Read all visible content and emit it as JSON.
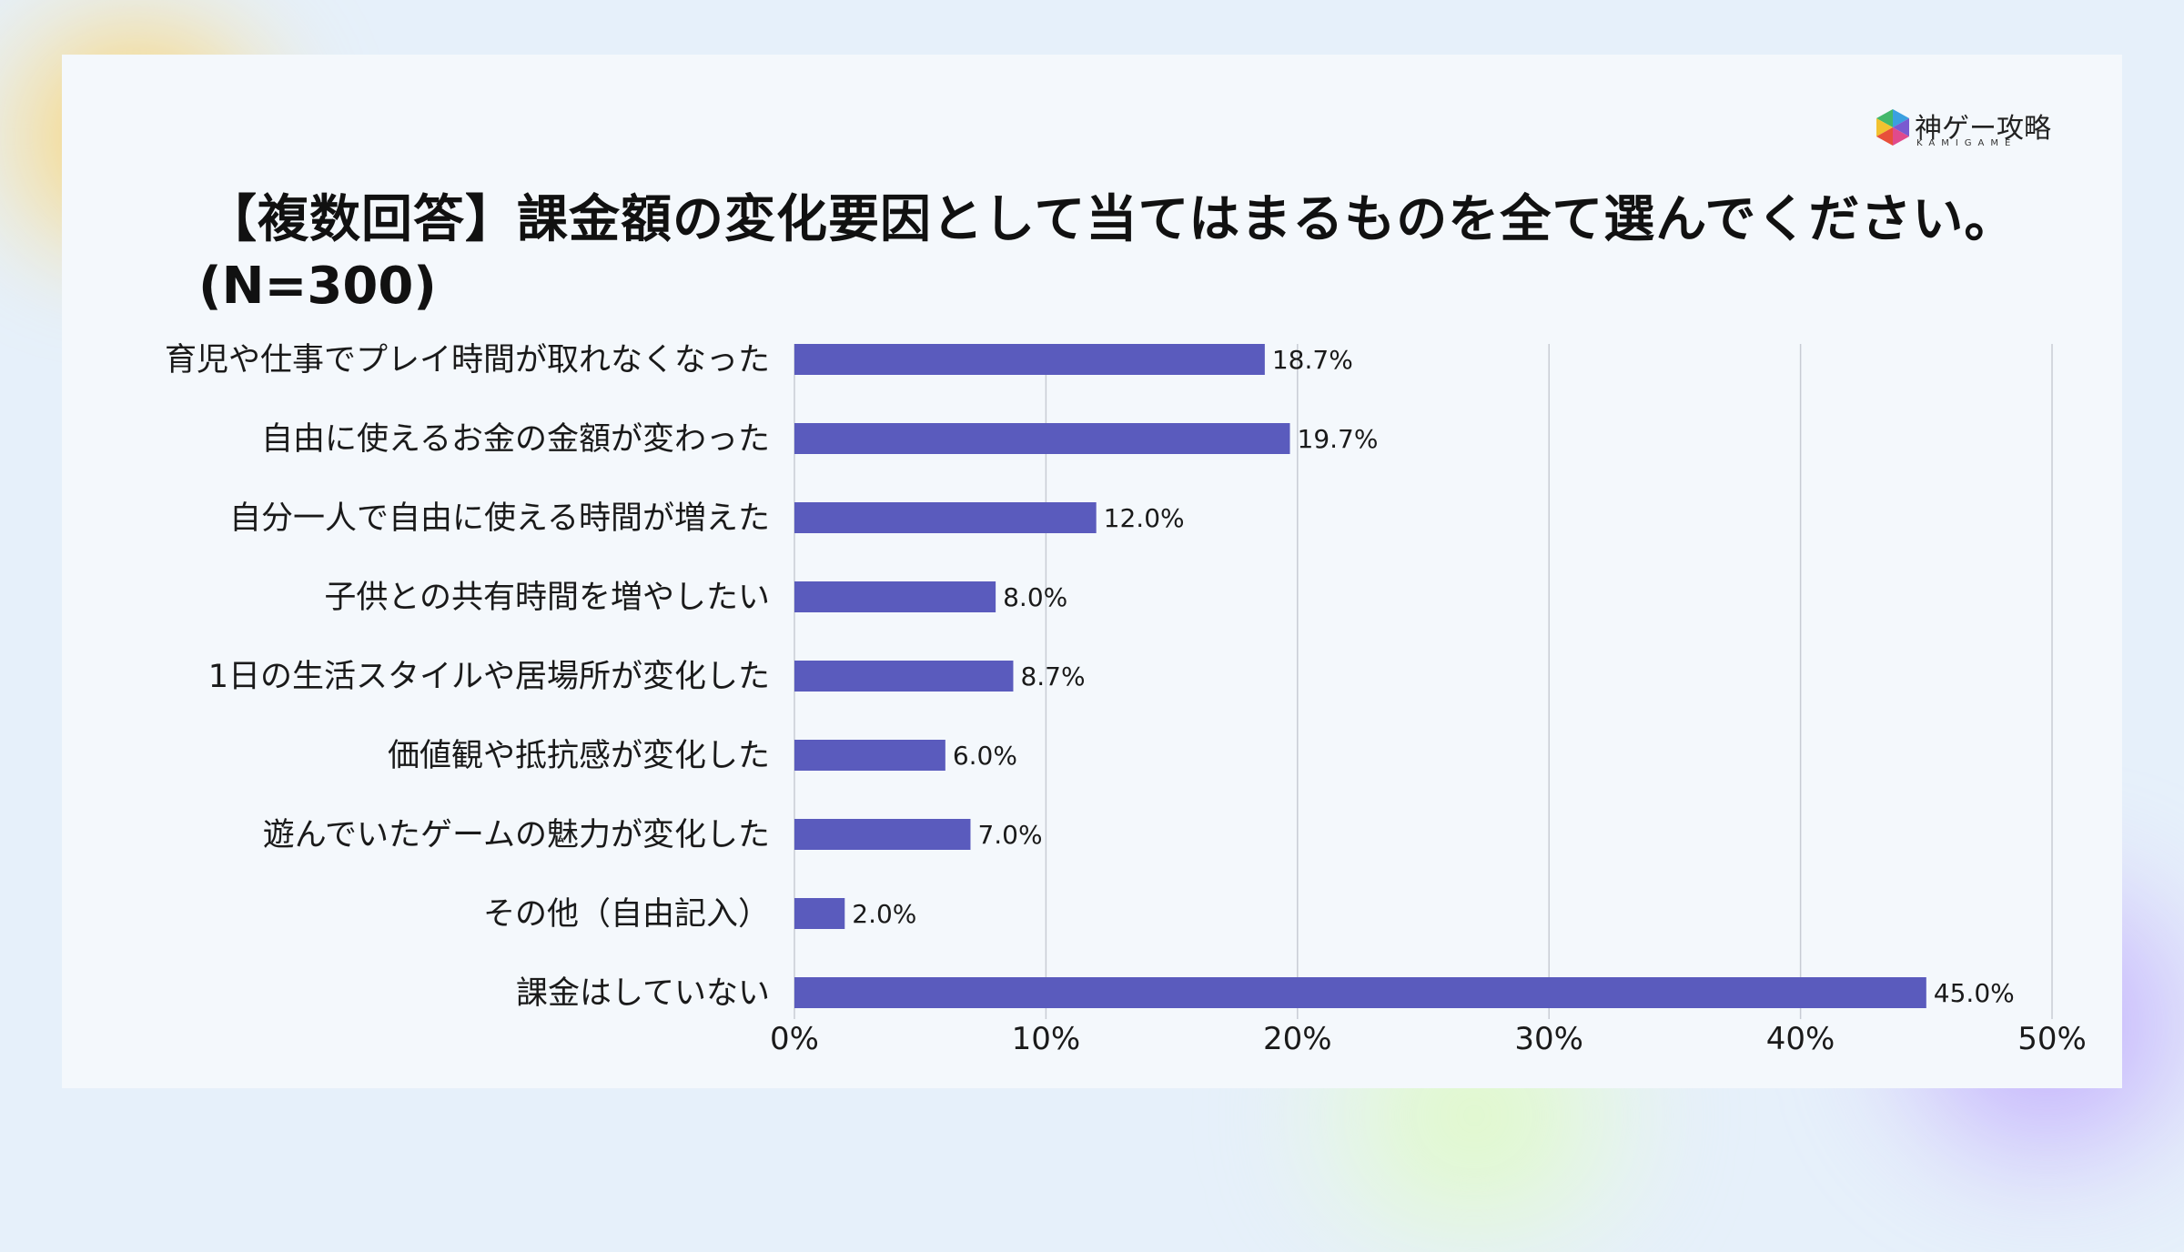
{
  "logo": {
    "title": "神ゲー攻略",
    "subtitle": "KAMIGAME"
  },
  "colors": {
    "bar": "#5a5bbd",
    "grid": "#c8ccd4",
    "background": "#f4f8fc"
  },
  "chart_data": {
    "type": "bar",
    "orientation": "horizontal",
    "title": "【複数回答】課金額の変化要因として当てはまるものを全て選んでください。",
    "subtitle": "(N=300)",
    "categories": [
      "育児や仕事でプレイ時間が取れなくなった",
      "自由に使えるお金の金額が変わった",
      "自分一人で自由に使える時間が増えた",
      "子供との共有時間を増やしたい",
      "1日の生活スタイルや居場所が変化した",
      "価値観や抵抗感が変化した",
      "遊んでいたゲームの魅力が変化した",
      "その他（自由記入）",
      "課金はしていない"
    ],
    "values": [
      18.7,
      19.7,
      12.0,
      8.0,
      8.7,
      6.0,
      7.0,
      2.0,
      45.0
    ],
    "value_labels": [
      "18.7%",
      "19.7%",
      "12.0%",
      "8.0%",
      "8.7%",
      "6.0%",
      "7.0%",
      "2.0%",
      "45.0%"
    ],
    "xlim": [
      0,
      50
    ],
    "xticks": [
      0,
      10,
      20,
      30,
      40,
      50
    ],
    "xtick_labels": [
      "0%",
      "10%",
      "20%",
      "30%",
      "40%",
      "50%"
    ],
    "grid": true,
    "legend": "none"
  }
}
